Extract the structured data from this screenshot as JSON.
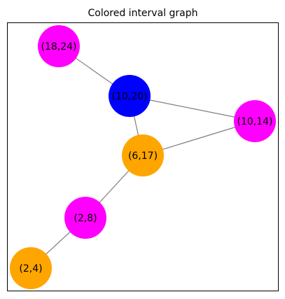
{
  "title": "Colored interval graph",
  "colors": {
    "magenta": "#ff00ff",
    "blue": "#0000ff",
    "orange": "#ffa500",
    "edge": "#808080",
    "frame": "#000000"
  },
  "nodes": [
    {
      "id": "n18_24",
      "label": "(18,24)",
      "color": "#ff00ff"
    },
    {
      "id": "n10_20",
      "label": "(10,20)",
      "color": "#0000ff"
    },
    {
      "id": "n10_14",
      "label": "(10,14)",
      "color": "#ff00ff"
    },
    {
      "id": "n6_17",
      "label": "(6,17)",
      "color": "#ffa500"
    },
    {
      "id": "n2_8",
      "label": "(2,8)",
      "color": "#ff00ff"
    },
    {
      "id": "n2_4",
      "label": "(2,4)",
      "color": "#ffa500"
    }
  ],
  "edges": [
    {
      "from": "n18_24",
      "to": "n10_20"
    },
    {
      "from": "n10_20",
      "to": "n10_14"
    },
    {
      "from": "n10_20",
      "to": "n6_17"
    },
    {
      "from": "n10_14",
      "to": "n6_17"
    },
    {
      "from": "n6_17",
      "to": "n2_8"
    },
    {
      "from": "n2_8",
      "to": "n2_4"
    }
  ]
}
